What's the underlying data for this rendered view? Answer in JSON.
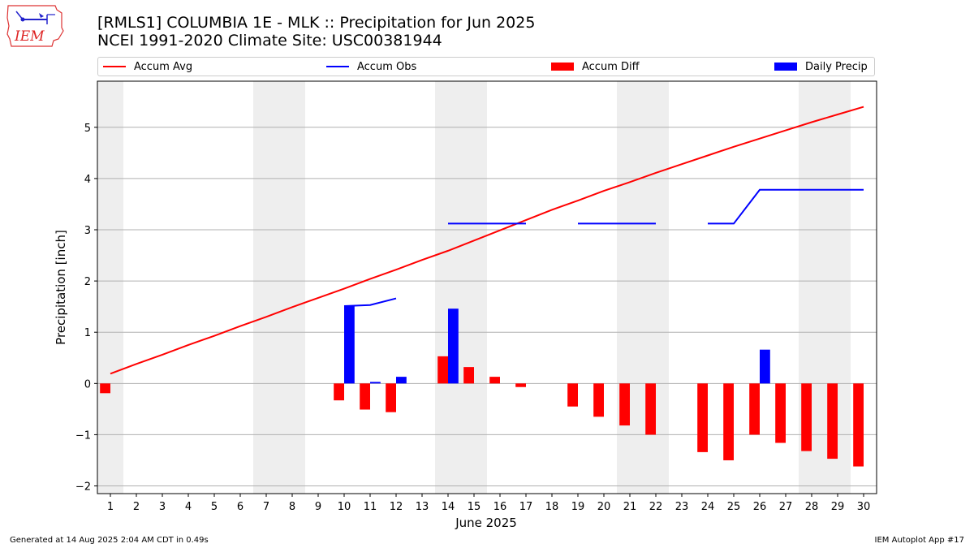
{
  "header": {
    "logo_text": "IEM",
    "title_line1": "[RMLS1] COLUMBIA 1E - MLK :: Precipitation for Jun 2025",
    "title_line2": "NCEI 1991-2020 Climate Site: USC00381944"
  },
  "legend": [
    {
      "label": "Accum Avg",
      "kind": "line",
      "color": "#ff0000"
    },
    {
      "label": "Accum Obs",
      "kind": "line",
      "color": "#0000ff"
    },
    {
      "label": "Accum Diff",
      "kind": "box",
      "color": "#ff0000"
    },
    {
      "label": "Daily Precip",
      "kind": "box",
      "color": "#0000ff"
    }
  ],
  "footer": {
    "left": "Generated at 14 Aug 2025 2:04 AM CDT in 0.49s",
    "right": "IEM Autoplot App #17"
  },
  "chart_data": {
    "type": "bar",
    "xlabel": "June 2025",
    "ylabel": "Precipitation [inch]",
    "xlim": [
      0.5,
      30.5
    ],
    "ylim": [
      -2.15,
      5.9
    ],
    "yticks": [
      -2,
      -1,
      0,
      1,
      2,
      3,
      4,
      5
    ],
    "ytick_labels": [
      "−2",
      "−1",
      "0",
      "1",
      "2",
      "3",
      "4",
      "5"
    ],
    "x": [
      1,
      2,
      3,
      4,
      5,
      6,
      7,
      8,
      9,
      10,
      11,
      12,
      13,
      14,
      15,
      16,
      17,
      18,
      19,
      20,
      21,
      22,
      23,
      24,
      25,
      26,
      27,
      28,
      29,
      30
    ],
    "weekend_shading": [
      [
        0.5,
        1.5
      ],
      [
        6.5,
        8.5
      ],
      [
        13.5,
        15.5
      ],
      [
        20.5,
        22.5
      ],
      [
        27.5,
        29.5
      ]
    ],
    "grid": "horizontal",
    "series": [
      {
        "name": "Accum Avg",
        "kind": "line",
        "values": [
          0.19,
          0.38,
          0.56,
          0.75,
          0.93,
          1.12,
          1.3,
          1.49,
          1.67,
          1.85,
          2.04,
          2.22,
          2.41,
          2.59,
          2.79,
          2.99,
          3.19,
          3.39,
          3.57,
          3.76,
          3.93,
          4.11,
          4.28,
          4.45,
          4.62,
          4.78,
          4.94,
          5.1,
          5.25,
          5.4
        ]
      },
      {
        "name": "Accum Obs",
        "kind": "line",
        "segments": [
          [
            [
              10,
              1.51
            ],
            [
              11,
              1.53
            ],
            [
              12,
              1.66
            ]
          ],
          [
            [
              14,
              3.12
            ],
            [
              17,
              3.12
            ]
          ],
          [
            [
              19,
              3.12
            ],
            [
              22,
              3.12
            ]
          ],
          [
            [
              24,
              3.12
            ],
            [
              25,
              3.12
            ],
            [
              26,
              3.78
            ],
            [
              30,
              3.78
            ]
          ]
        ]
      },
      {
        "name": "Accum Diff",
        "kind": "bar",
        "values": [
          -0.19,
          null,
          null,
          null,
          null,
          null,
          null,
          null,
          null,
          -0.33,
          -0.51,
          -0.56,
          null,
          0.53,
          0.32,
          0.13,
          -0.07,
          null,
          -0.45,
          -0.65,
          -0.82,
          -1.0,
          null,
          -1.34,
          -1.5,
          -1.0,
          -1.16,
          -1.32,
          -1.47,
          -1.62
        ]
      },
      {
        "name": "Daily Precip",
        "kind": "bar",
        "values": [
          null,
          null,
          null,
          null,
          null,
          null,
          null,
          null,
          null,
          1.51,
          0.03,
          0.13,
          null,
          1.46,
          null,
          null,
          null,
          null,
          null,
          null,
          null,
          null,
          null,
          null,
          null,
          0.66,
          null,
          null,
          null,
          null
        ]
      }
    ]
  }
}
